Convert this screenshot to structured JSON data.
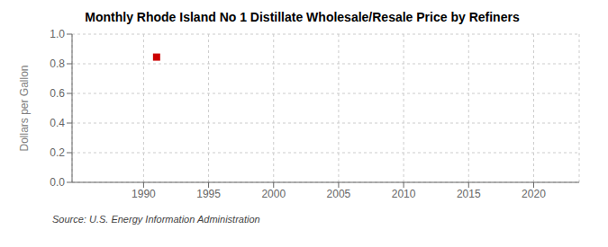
{
  "chart_data": {
    "type": "scatter",
    "title": "Monthly Rhode Island No 1 Distillate Wholesale/Resale Price by Refiners",
    "ylabel": "Dollars per Gallon",
    "annotations": [
      "Source: U.S. Energy Information Administration"
    ],
    "x": [
      1991.0
    ],
    "values": [
      0.845
    ],
    "color": "#cc0000",
    "marker": "square",
    "xlim": [
      1984.5,
      2023.5
    ],
    "ylim": [
      0.0,
      1.0
    ],
    "xticks": [
      1990,
      1995,
      2000,
      2005,
      2010,
      2015,
      2020
    ],
    "yticks": [
      {
        "value": 0.0,
        "label": "0.0"
      },
      0.2,
      0.4,
      0.6,
      0.8,
      {
        "value": 1.0,
        "label": "1.0"
      }
    ],
    "grid": true
  }
}
